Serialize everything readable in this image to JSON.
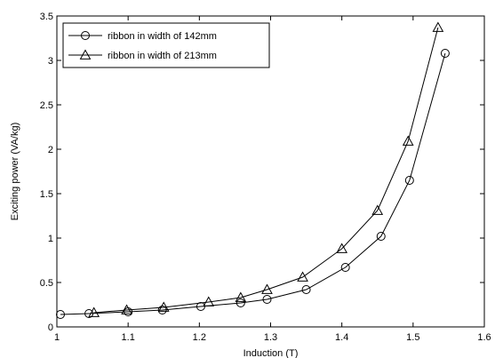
{
  "chart_data": {
    "type": "line",
    "xlabel": "Induction (T)",
    "ylabel": "Exciting power (VA/kg)",
    "xlim": [
      1.0,
      1.6
    ],
    "ylim": [
      0,
      3.5
    ],
    "xticks": [
      "1",
      "1.1",
      "1.2",
      "1.3",
      "1.4",
      "1.5",
      "1.6"
    ],
    "xtick_values": [
      1.0,
      1.1,
      1.2,
      1.3,
      1.4,
      1.5,
      1.6
    ],
    "yticks": [
      "0",
      "0.5",
      "1",
      "1.5",
      "2",
      "2.5",
      "3",
      "3.5"
    ],
    "ytick_values": [
      0,
      0.5,
      1.0,
      1.5,
      2.0,
      2.5,
      3.0,
      3.5
    ],
    "grid": false,
    "legend_position": "top-left",
    "series": [
      {
        "name": "ribbon in width of 142mm",
        "marker": "circle",
        "color": "#000000",
        "x": [
          1.005,
          1.045,
          1.1,
          1.148,
          1.202,
          1.258,
          1.295,
          1.35,
          1.405,
          1.455,
          1.495,
          1.545
        ],
        "y": [
          0.14,
          0.15,
          0.17,
          0.19,
          0.23,
          0.27,
          0.31,
          0.42,
          0.67,
          1.02,
          1.65,
          3.08
        ]
      },
      {
        "name": "ribbon in width of 213mm",
        "marker": "triangle",
        "color": "#000000",
        "x": [
          1.052,
          1.098,
          1.15,
          1.213,
          1.258,
          1.295,
          1.345,
          1.4,
          1.45,
          1.493,
          1.535
        ],
        "y": [
          0.16,
          0.19,
          0.22,
          0.28,
          0.33,
          0.42,
          0.56,
          0.88,
          1.31,
          2.09,
          3.37
        ]
      }
    ]
  }
}
